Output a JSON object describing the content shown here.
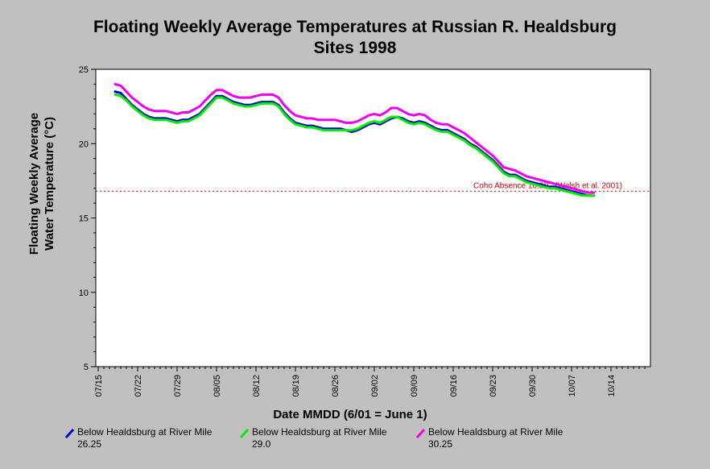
{
  "chart_data": {
    "type": "line",
    "title": "Floating Weekly Average Temperatures at Russian R. Healdsburg",
    "subtitle": "Sites 1998",
    "xlabel": "Date MMDD (6/01 = June 1)",
    "ylabel_line1": "Floating Weekly Average",
    "ylabel_line2": "Water Temperature (°C)",
    "ylim": [
      5,
      25
    ],
    "yticks": [
      "5",
      "10",
      "15",
      "20",
      "25"
    ],
    "xticks": [
      "07/15",
      "07/22",
      "07/29",
      "08/05",
      "08/12",
      "08/19",
      "08/26",
      "09/02",
      "09/09",
      "09/16",
      "09/23",
      "09/30",
      "10/07",
      "10/14"
    ],
    "x_unit": "day",
    "x_start_label": "07/15",
    "reference_line": {
      "y": 16.8,
      "label": "Coho Absence 16.8°C (Welsh et al. 2001)",
      "color": "#cc0000"
    },
    "grid": false,
    "legend_position": "bottom",
    "series": [
      {
        "name": "Below Healdsburg at River Mile 26.25",
        "color": "#0000cc",
        "x": [
          "07/18",
          "07/19",
          "07/20",
          "07/21",
          "07/22",
          "07/23",
          "07/24",
          "07/25",
          "07/26",
          "07/27",
          "07/28",
          "07/29",
          "07/30",
          "07/31",
          "08/01",
          "08/02",
          "08/03",
          "08/04",
          "08/05",
          "08/06",
          "08/07",
          "08/08",
          "08/09",
          "08/10",
          "08/11",
          "08/12",
          "08/13",
          "08/14",
          "08/15",
          "08/16",
          "08/17",
          "08/18",
          "08/19",
          "08/20",
          "08/21",
          "08/22",
          "08/23",
          "08/24",
          "08/25",
          "08/26",
          "08/27",
          "08/28",
          "08/29",
          "08/30",
          "08/31",
          "09/01",
          "09/02",
          "09/03",
          "09/04",
          "09/05",
          "09/06",
          "09/07",
          "09/08",
          "09/09",
          "09/10",
          "09/11",
          "09/12",
          "09/13",
          "09/14",
          "09/15",
          "09/16",
          "09/17",
          "09/18",
          "09/19",
          "09/20",
          "09/21",
          "09/22",
          "09/23",
          "09/24",
          "09/25",
          "09/26",
          "09/27",
          "09/28",
          "09/29",
          "09/30",
          "10/01",
          "10/02",
          "10/03",
          "10/04",
          "10/05",
          "10/06",
          "10/07",
          "10/08",
          "10/09",
          "10/10",
          "10/11"
        ],
        "y": [
          23.5,
          23.4,
          23.0,
          22.6,
          22.3,
          22.0,
          21.8,
          21.7,
          21.7,
          21.7,
          21.6,
          21.5,
          21.6,
          21.6,
          21.8,
          22.0,
          22.4,
          22.8,
          23.2,
          23.2,
          23.0,
          22.8,
          22.7,
          22.6,
          22.6,
          22.7,
          22.8,
          22.8,
          22.8,
          22.6,
          22.1,
          21.7,
          21.4,
          21.3,
          21.2,
          21.2,
          21.1,
          21.0,
          21.0,
          21.0,
          21.0,
          20.9,
          20.8,
          20.9,
          21.1,
          21.3,
          21.4,
          21.3,
          21.5,
          21.7,
          21.8,
          21.7,
          21.5,
          21.4,
          21.5,
          21.4,
          21.2,
          21.0,
          20.9,
          20.9,
          20.7,
          20.5,
          20.3,
          20.0,
          19.8,
          19.5,
          19.2,
          18.9,
          18.5,
          18.1,
          17.9,
          17.9,
          17.7,
          17.5,
          17.4,
          17.3,
          17.2,
          17.1,
          17.1,
          17.0,
          16.9,
          16.8,
          16.7,
          16.6,
          16.5,
          16.5
        ]
      },
      {
        "name": "Below Healdsburg at River Mile 29.0",
        "color": "#00ee00",
        "x": [
          "07/18",
          "07/19",
          "07/20",
          "07/21",
          "07/22",
          "07/23",
          "07/24",
          "07/25",
          "07/26",
          "07/27",
          "07/28",
          "07/29",
          "07/30",
          "07/31",
          "08/01",
          "08/02",
          "08/03",
          "08/04",
          "08/05",
          "08/06",
          "08/07",
          "08/08",
          "08/09",
          "08/10",
          "08/11",
          "08/12",
          "08/13",
          "08/14",
          "08/15",
          "08/16",
          "08/17",
          "08/18",
          "08/19",
          "08/20",
          "08/21",
          "08/22",
          "08/23",
          "08/24",
          "08/25",
          "08/26",
          "08/27",
          "08/28",
          "08/29",
          "08/30",
          "08/31",
          "09/01",
          "09/02",
          "09/03",
          "09/04",
          "09/05",
          "09/06",
          "09/07",
          "09/08",
          "09/09",
          "09/10",
          "09/11",
          "09/12",
          "09/13",
          "09/14",
          "09/15",
          "09/16",
          "09/17",
          "09/18",
          "09/19",
          "09/20",
          "09/21",
          "09/22",
          "09/23",
          "09/24",
          "09/25",
          "09/26",
          "09/27",
          "09/28",
          "09/29",
          "09/30",
          "10/01",
          "10/02",
          "10/03",
          "10/04",
          "10/05",
          "10/06",
          "10/07",
          "10/08",
          "10/09",
          "10/10",
          "10/11"
        ],
        "y": [
          23.3,
          23.2,
          22.9,
          22.5,
          22.2,
          21.9,
          21.7,
          21.6,
          21.6,
          21.6,
          21.5,
          21.4,
          21.5,
          21.5,
          21.7,
          21.9,
          22.3,
          22.7,
          23.1,
          23.1,
          22.9,
          22.7,
          22.6,
          22.5,
          22.5,
          22.6,
          22.7,
          22.7,
          22.7,
          22.5,
          22.0,
          21.6,
          21.3,
          21.2,
          21.1,
          21.1,
          21.0,
          20.9,
          20.9,
          20.9,
          20.9,
          20.9,
          20.9,
          21.0,
          21.2,
          21.4,
          21.5,
          21.4,
          21.6,
          21.8,
          21.8,
          21.6,
          21.4,
          21.3,
          21.4,
          21.3,
          21.1,
          20.9,
          20.8,
          20.8,
          20.6,
          20.4,
          20.2,
          19.9,
          19.7,
          19.4,
          19.1,
          18.8,
          18.4,
          18.0,
          17.8,
          17.8,
          17.6,
          17.4,
          17.3,
          17.2,
          17.1,
          17.0,
          17.0,
          16.9,
          16.8,
          16.7,
          16.6,
          16.5,
          16.5,
          16.5
        ]
      },
      {
        "name": "Below Healdsburg at River Mile 30.25",
        "color": "#ee00ee",
        "x": [
          "07/18",
          "07/19",
          "07/20",
          "07/21",
          "07/22",
          "07/23",
          "07/24",
          "07/25",
          "07/26",
          "07/27",
          "07/28",
          "07/29",
          "07/30",
          "07/31",
          "08/01",
          "08/02",
          "08/03",
          "08/04",
          "08/05",
          "08/06",
          "08/07",
          "08/08",
          "08/09",
          "08/10",
          "08/11",
          "08/12",
          "08/13",
          "08/14",
          "08/15",
          "08/16",
          "08/17",
          "08/18",
          "08/19",
          "08/20",
          "08/21",
          "08/22",
          "08/23",
          "08/24",
          "08/25",
          "08/26",
          "08/27",
          "08/28",
          "08/29",
          "08/30",
          "08/31",
          "09/01",
          "09/02",
          "09/03",
          "09/04",
          "09/05",
          "09/06",
          "09/07",
          "09/08",
          "09/09",
          "09/10",
          "09/11",
          "09/12",
          "09/13",
          "09/14",
          "09/15",
          "09/16",
          "09/17",
          "09/18",
          "09/19",
          "09/20",
          "09/21",
          "09/22",
          "09/23",
          "09/24",
          "09/25",
          "09/26",
          "09/27",
          "09/28",
          "09/29",
          "09/30",
          "10/01",
          "10/02",
          "10/03",
          "10/04",
          "10/05",
          "10/06",
          "10/07",
          "10/08",
          "10/09",
          "10/10",
          "10/11"
        ],
        "y": [
          24.0,
          23.9,
          23.5,
          23.1,
          22.8,
          22.5,
          22.3,
          22.2,
          22.2,
          22.2,
          22.1,
          22.0,
          22.1,
          22.1,
          22.3,
          22.5,
          22.9,
          23.3,
          23.6,
          23.6,
          23.4,
          23.2,
          23.1,
          23.1,
          23.1,
          23.2,
          23.3,
          23.3,
          23.3,
          23.1,
          22.6,
          22.2,
          21.9,
          21.8,
          21.7,
          21.7,
          21.6,
          21.6,
          21.6,
          21.6,
          21.5,
          21.4,
          21.4,
          21.5,
          21.7,
          21.9,
          22.0,
          21.9,
          22.1,
          22.4,
          22.4,
          22.2,
          22.0,
          21.9,
          22.0,
          21.9,
          21.6,
          21.4,
          21.3,
          21.3,
          21.1,
          20.9,
          20.7,
          20.4,
          20.1,
          19.8,
          19.5,
          19.2,
          18.8,
          18.4,
          18.3,
          18.2,
          18.0,
          17.8,
          17.7,
          17.6,
          17.5,
          17.4,
          17.3,
          17.2,
          17.1,
          17.0,
          16.9,
          16.8,
          16.7,
          16.7
        ]
      }
    ]
  },
  "legend": [
    {
      "line1": "Below Healdsburg at River Mile",
      "line2": "26.25"
    },
    {
      "line1": "Below Healdsburg at River Mile",
      "line2": "29.0"
    },
    {
      "line1": "Below Healdsburg at River Mile",
      "line2": "30.25"
    }
  ]
}
